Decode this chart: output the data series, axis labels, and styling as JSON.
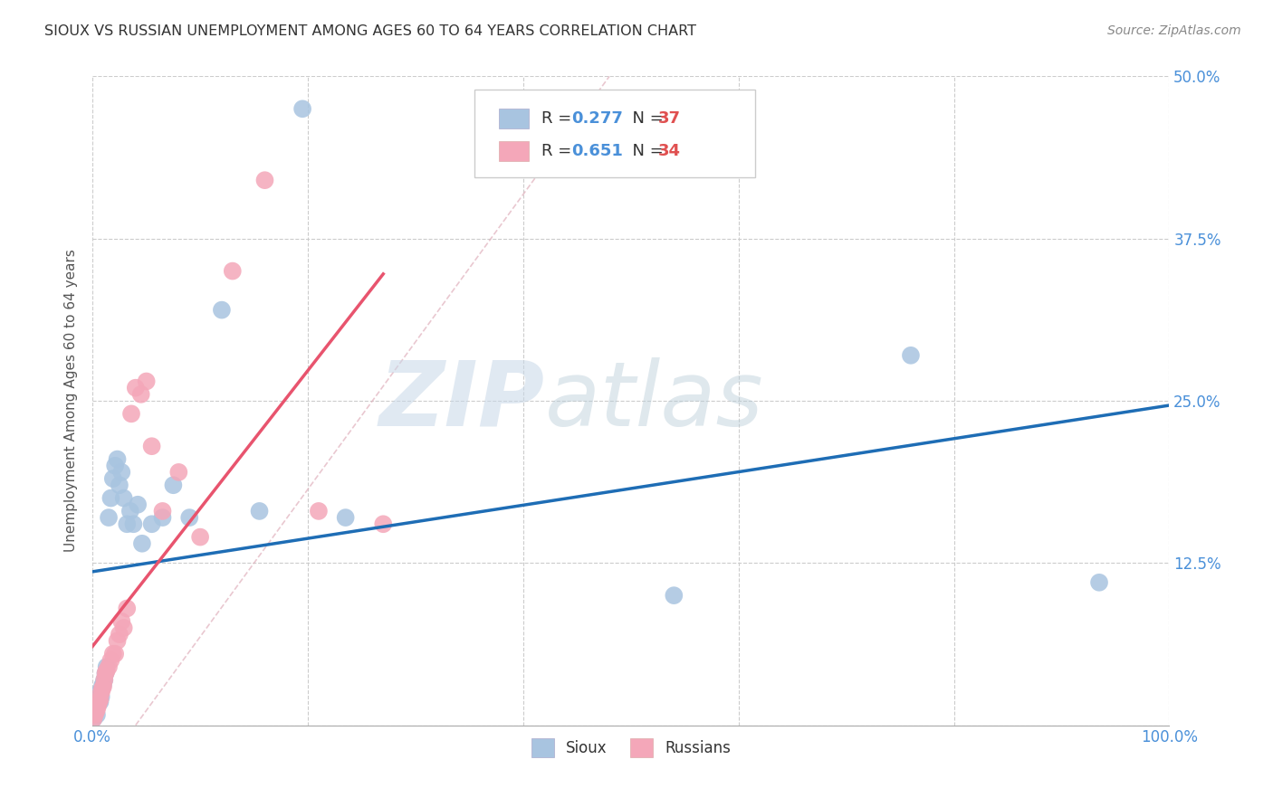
{
  "title": "SIOUX VS RUSSIAN UNEMPLOYMENT AMONG AGES 60 TO 64 YEARS CORRELATION CHART",
  "source": "Source: ZipAtlas.com",
  "ylabel": "Unemployment Among Ages 60 to 64 years",
  "xlim": [
    0,
    1.0
  ],
  "ylim": [
    0,
    0.5
  ],
  "xtick_positions": [
    0.0,
    0.2,
    0.4,
    0.6,
    0.8,
    1.0
  ],
  "xticklabels": [
    "0.0%",
    "",
    "",
    "",
    "",
    "100.0%"
  ],
  "ytick_positions": [
    0.0,
    0.125,
    0.25,
    0.375,
    0.5
  ],
  "yticklabels": [
    "",
    "12.5%",
    "25.0%",
    "37.5%",
    "50.0%"
  ],
  "sioux_color": "#a8c4e0",
  "russian_color": "#f4a7b9",
  "sioux_line_color": "#1e6db5",
  "russian_line_color": "#e8546e",
  "legend_r1_text": "R = 0.277",
  "legend_n1_text": "N = 37",
  "legend_r2_text": "R = 0.651",
  "legend_n2_text": "N = 34",
  "watermark_zip": "ZIP",
  "watermark_atlas": "atlas",
  "tick_color": "#4a90d9",
  "sioux_x": [
    0.001,
    0.002,
    0.003,
    0.004,
    0.005,
    0.006,
    0.007,
    0.008,
    0.009,
    0.01,
    0.011,
    0.012,
    0.013,
    0.015,
    0.017,
    0.019,
    0.021,
    0.023,
    0.025,
    0.027,
    0.029,
    0.032,
    0.035,
    0.038,
    0.042,
    0.046,
    0.055,
    0.065,
    0.075,
    0.09,
    0.12,
    0.155,
    0.195,
    0.235,
    0.54,
    0.76,
    0.935
  ],
  "sioux_y": [
    0.005,
    0.01,
    0.015,
    0.008,
    0.02,
    0.025,
    0.018,
    0.022,
    0.03,
    0.032,
    0.035,
    0.04,
    0.045,
    0.16,
    0.175,
    0.19,
    0.2,
    0.205,
    0.185,
    0.195,
    0.175,
    0.155,
    0.165,
    0.155,
    0.17,
    0.14,
    0.155,
    0.16,
    0.185,
    0.16,
    0.32,
    0.165,
    0.475,
    0.16,
    0.1,
    0.285,
    0.11
  ],
  "russian_x": [
    0.001,
    0.002,
    0.003,
    0.004,
    0.005,
    0.006,
    0.007,
    0.008,
    0.009,
    0.01,
    0.011,
    0.012,
    0.013,
    0.015,
    0.017,
    0.019,
    0.021,
    0.023,
    0.025,
    0.027,
    0.029,
    0.032,
    0.036,
    0.04,
    0.045,
    0.05,
    0.055,
    0.065,
    0.08,
    0.1,
    0.13,
    0.16,
    0.21,
    0.27
  ],
  "russian_y": [
    0.005,
    0.008,
    0.01,
    0.012,
    0.015,
    0.018,
    0.02,
    0.025,
    0.028,
    0.03,
    0.035,
    0.04,
    0.042,
    0.045,
    0.05,
    0.055,
    0.055,
    0.065,
    0.07,
    0.08,
    0.075,
    0.09,
    0.24,
    0.26,
    0.255,
    0.265,
    0.215,
    0.165,
    0.195,
    0.145,
    0.35,
    0.42,
    0.165,
    0.155
  ]
}
